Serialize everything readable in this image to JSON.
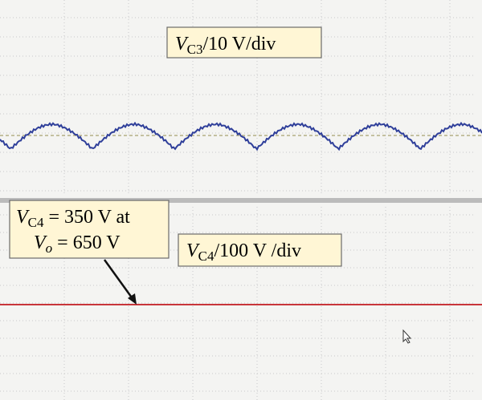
{
  "annotations": [
    {
      "var": "V",
      "sub": "C3",
      "rest": "/10 V/div"
    },
    {
      "var": "V",
      "sub": "C4",
      "rest": " = 350 V at",
      "var2": "V",
      "sub2": "o",
      "rest2": " = 650 V"
    },
    {
      "var": "V",
      "sub": "C4",
      "rest": "/100 V /div"
    }
  ]
}
